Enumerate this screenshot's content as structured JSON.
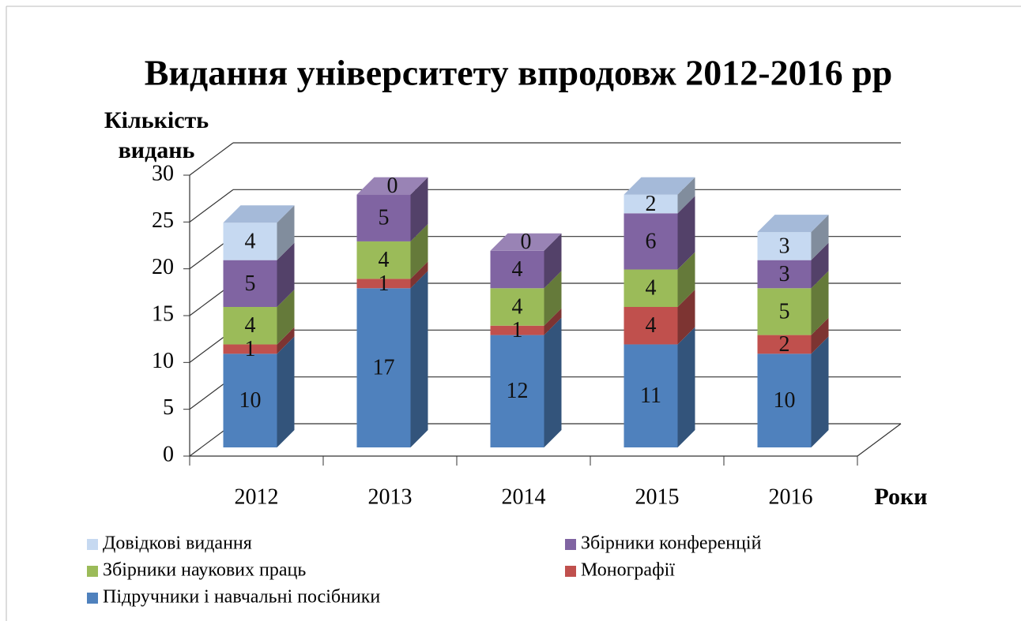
{
  "chart_data": {
    "type": "bar3d_stacked",
    "title": "Видання університету впродовж 2012-2016 рр",
    "y_label": [
      "Кількість",
      "видань"
    ],
    "x_label": "Роки",
    "categories": [
      "2012",
      "2013",
      "2014",
      "2015",
      "2016"
    ],
    "series": [
      {
        "name": "Підручники і навчальні посібники",
        "color": "#4f81bd",
        "values": [
          10,
          17,
          12,
          11,
          10
        ]
      },
      {
        "name": "Монографії",
        "color": "#c0504d",
        "values": [
          1,
          1,
          1,
          4,
          2
        ]
      },
      {
        "name": "Збірники наукових праць",
        "color": "#9bbb59",
        "values": [
          4,
          4,
          4,
          4,
          5
        ]
      },
      {
        "name": "Збірники конференцій",
        "color": "#8064a2",
        "values": [
          5,
          5,
          4,
          6,
          3
        ]
      },
      {
        "name": "Довідкові видання",
        "color": "#c6d9f1",
        "values": [
          4,
          0,
          0,
          2,
          3
        ]
      }
    ],
    "ylim": [
      0,
      30
    ],
    "yticks": [
      0,
      5,
      10,
      15,
      20,
      25,
      30
    ],
    "grid": true
  }
}
